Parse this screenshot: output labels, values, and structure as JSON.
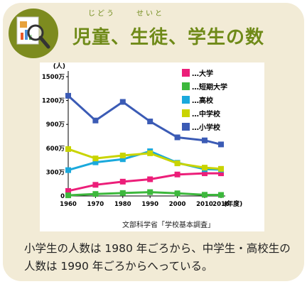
{
  "header": {
    "title": "児童、生徒、学生の数",
    "ruby_jido": "じどう",
    "ruby_seito": "せいと"
  },
  "chart_data": {
    "type": "line",
    "y_unit": "(人)",
    "x_unit": "(年度)",
    "x": [
      1960,
      1970,
      1980,
      1990,
      2000,
      2010,
      2016
    ],
    "x_tick_labels": [
      "1960",
      "1970",
      "1980",
      "1990",
      "2000",
      "2010",
      "2016"
    ],
    "y_ticks": [
      0,
      300,
      600,
      900,
      1200,
      1500
    ],
    "y_tick_labels": [
      "0",
      "300万",
      "600万",
      "900万",
      "1200万",
      "1500万"
    ],
    "ylim": [
      0,
      1500
    ],
    "grid": false,
    "legend_position": "top-right",
    "series": [
      {
        "name": "…大学",
        "color": "#ec1e79",
        "values": [
          63,
          140,
          180,
          210,
          270,
          285,
          285
        ]
      },
      {
        "name": "…短期大学",
        "color": "#3db83d",
        "values": [
          8,
          25,
          37,
          48,
          33,
          15,
          13
        ]
      },
      {
        "name": "…高校",
        "color": "#1aa9dc",
        "values": [
          325,
          423,
          462,
          562,
          417,
          337,
          331
        ]
      },
      {
        "name": "…中学校",
        "color": "#c9d400",
        "values": [
          590,
          472,
          509,
          537,
          410,
          356,
          341
        ]
      },
      {
        "name": "…小学校",
        "color": "#3b5bb5",
        "values": [
          1260,
          949,
          1183,
          937,
          737,
          699,
          648
        ]
      }
    ]
  },
  "source": "文部科学省「学校基本調査」",
  "caption": "小学生の人数は 1980 年ごろから、中学生・高校生の人数は 1990 年ごろからへっている。"
}
